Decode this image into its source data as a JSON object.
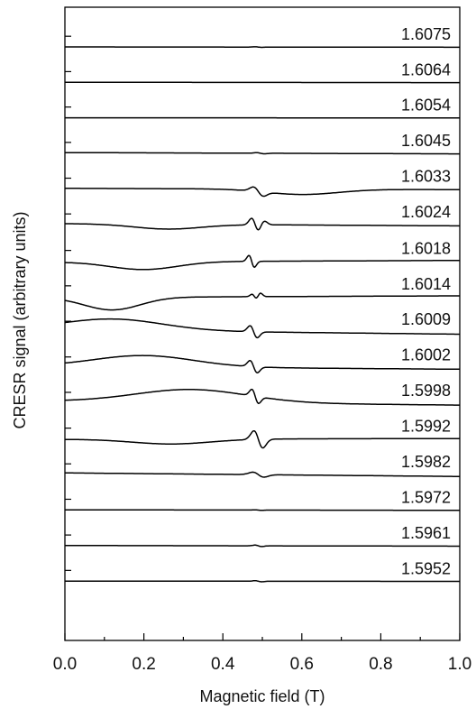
{
  "chart_data": {
    "type": "line",
    "xlabel": "Magnetic field (T)",
    "ylabel": "CRESR signal (arbitrary units)",
    "xlim": [
      0.0,
      1.0
    ],
    "x_ticks": [
      "0.0",
      "0.2",
      "0.4",
      "0.6",
      "0.8",
      "1.0"
    ],
    "y_ticks_labeled": false,
    "series": [
      {
        "name": "1.6075",
        "baseline": 0.993,
        "tilt": -0.02,
        "a1": 0.0,
        "c1": 0.3,
        "w1": 0.1,
        "a2": -0.04,
        "c2": 0.49,
        "w2": 0.012,
        "d": 0.0
      },
      {
        "name": "1.6064",
        "baseline": 0.898,
        "tilt": -0.02,
        "a1": 0.0,
        "c1": 0.3,
        "w1": 0.1,
        "a2": 0.0,
        "c2": 0.49,
        "w2": 0.012,
        "d": 0.0
      },
      {
        "name": "1.6054",
        "baseline": 0.803,
        "tilt": -0.01,
        "a1": 0.0,
        "c1": 0.3,
        "w1": 0.1,
        "a2": 0.0,
        "c2": 0.49,
        "w2": 0.012,
        "d": 0.0
      },
      {
        "name": "1.6045",
        "baseline": 0.708,
        "tilt": -0.08,
        "a1": 0.0,
        "c1": 0.3,
        "w1": 0.1,
        "a2": -0.08,
        "c2": 0.495,
        "w2": 0.014,
        "d": 0.0
      },
      {
        "name": "1.6033",
        "baseline": 0.612,
        "tilt": -0.08,
        "a1": -0.33,
        "c1": 0.6,
        "w1": 0.13,
        "a2": -0.6,
        "c2": 0.49,
        "w2": 0.018,
        "d": 0.0
      },
      {
        "name": "1.6024",
        "baseline": 0.516,
        "tilt": -0.14,
        "a1": -0.3,
        "c1": 0.26,
        "w1": 0.12,
        "a2": -0.95,
        "c2": 0.482,
        "w2": 0.013,
        "d": 0.3
      },
      {
        "name": "1.6018",
        "baseline": 0.418,
        "tilt": 0.1,
        "a1": -0.48,
        "c1": 0.2,
        "w1": 0.12,
        "a2": -0.85,
        "c2": 0.473,
        "w2": 0.01,
        "d": 0.0
      },
      {
        "name": "1.6014",
        "baseline": 0.323,
        "tilt": 0.1,
        "a1": -0.78,
        "c1": 0.12,
        "w1": 0.1,
        "a2": -0.35,
        "c2": 0.48,
        "w2": 0.009,
        "d": 0.25
      },
      {
        "name": "1.6009",
        "baseline": 0.228,
        "tilt": -0.27,
        "a1": 0.7,
        "c1": 0.12,
        "w1": 0.18,
        "a2": -0.85,
        "c2": 0.478,
        "w2": 0.013,
        "d": 0.0
      },
      {
        "name": "1.6002",
        "baseline": 0.132,
        "tilt": -0.18,
        "a1": 0.7,
        "c1": 0.2,
        "w1": 0.18,
        "a2": -0.85,
        "c2": 0.478,
        "w2": 0.013,
        "d": 0.0
      },
      {
        "name": "1.5998",
        "baseline": 0.037,
        "tilt": -0.24,
        "a1": 0.8,
        "c1": 0.32,
        "w1": 0.2,
        "a2": -0.95,
        "c2": 0.482,
        "w2": 0.012,
        "d": 0.0
      },
      {
        "name": "1.5992",
        "baseline": -0.059,
        "tilt": 0.05,
        "a1": -0.3,
        "c1": 0.27,
        "w1": 0.14,
        "a2": -1.25,
        "c2": 0.49,
        "w2": 0.016,
        "d": 0.0
      },
      {
        "name": "1.5982",
        "baseline": -0.155,
        "tilt": -0.22,
        "a1": 0.0,
        "c1": 0.3,
        "w1": 0.1,
        "a2": -0.35,
        "c2": 0.49,
        "w2": 0.02,
        "d": 0.0
      },
      {
        "name": "1.5972",
        "baseline": -0.25,
        "tilt": -0.03,
        "a1": 0.0,
        "c1": 0.3,
        "w1": 0.1,
        "a2": -0.03,
        "c2": 0.49,
        "w2": 0.012,
        "d": 0.0
      },
      {
        "name": "1.5961",
        "baseline": -0.346,
        "tilt": -0.04,
        "a1": 0.0,
        "c1": 0.3,
        "w1": 0.1,
        "a2": -0.1,
        "c2": 0.49,
        "w2": 0.012,
        "d": 0.0
      },
      {
        "name": "1.5952",
        "baseline": -0.441,
        "tilt": -0.02,
        "a1": 0.0,
        "c1": 0.3,
        "w1": 0.1,
        "a2": -0.08,
        "c2": 0.49,
        "w2": 0.012,
        "d": 0.0
      }
    ],
    "grid": false,
    "legend": "none"
  }
}
